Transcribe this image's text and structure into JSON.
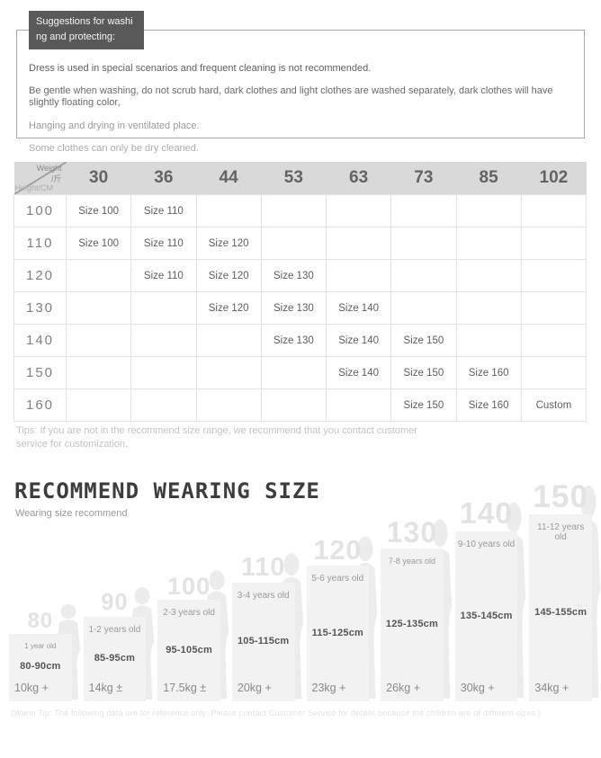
{
  "wash_box": {
    "title": "Suggestions for washing and protecting:",
    "lines": [
      "Dress is used in special scenarios and frequent cleaning is not recommended.",
      "Be gentle when washing, do not scrub hard, dark clothes and light clothes are washed separately, dark clothes will have slightly floating color,",
      "Hanging and drying in ventilated place.",
      "Some clothes can only be dry cleaned."
    ],
    "title_bg_color": "#595959"
  },
  "size_table": {
    "corner": {
      "top_label": "Weight",
      "top_unit": "/斤",
      "bottom_label": "Height/CM"
    },
    "weights": [
      "30",
      "36",
      "44",
      "53",
      "63",
      "73",
      "85",
      "102"
    ],
    "rows": [
      {
        "height": "100",
        "cells": [
          "Size 100",
          "Size 110",
          "",
          "",
          "",
          "",
          "",
          ""
        ]
      },
      {
        "height": "110",
        "cells": [
          "Size 100",
          "Size 110",
          "Size 120",
          "",
          "",
          "",
          "",
          ""
        ]
      },
      {
        "height": "120",
        "cells": [
          "",
          "Size 110",
          "Size 120",
          "Size 130",
          "",
          "",
          "",
          ""
        ]
      },
      {
        "height": "130",
        "cells": [
          "",
          "",
          "Size 120",
          "Size 130",
          "Size 140",
          "",
          "",
          ""
        ]
      },
      {
        "height": "140",
        "cells": [
          "",
          "",
          "",
          "Size 130",
          "Size 140",
          "Size 150",
          "",
          ""
        ]
      },
      {
        "height": "150",
        "cells": [
          "",
          "",
          "",
          "",
          "Size 140",
          "Size 150",
          "Size 160",
          ""
        ]
      },
      {
        "height": "160",
        "cells": [
          "",
          "",
          "",
          "",
          "",
          "Size 150",
          "Size 160",
          "Custom"
        ]
      }
    ],
    "header_bg_color": "#d9d9d9",
    "tips": "Tips: If you are not in the recommend size range, we recommend that you contact customer service for customization."
  },
  "recommend": {
    "title": "RECOMMEND WEARING SIZE",
    "subtitle": "Wearing size recommend",
    "items": [
      {
        "size": "80",
        "age": "1 year old",
        "height_range": "80-90cm",
        "weight": "10kg +"
      },
      {
        "size": "90",
        "age": "1-2 years old",
        "height_range": "85-95cm",
        "weight": "14kg ±"
      },
      {
        "size": "100",
        "age": "2-3 years old",
        "height_range": "95-105cm",
        "weight": "17.5kg ±"
      },
      {
        "size": "110",
        "age": "3-4 years old",
        "height_range": "105-115cm",
        "weight": "20kg +"
      },
      {
        "size": "120",
        "age": "5-6 years old",
        "height_range": "115-125cm",
        "weight": "23kg +"
      },
      {
        "size": "130",
        "age": "7-8 years old",
        "height_range": "125-135cm",
        "weight": "26kg +"
      },
      {
        "size": "140",
        "age": "9-10 years old",
        "height_range": "135-145cm",
        "weight": "30kg +"
      },
      {
        "size": "150",
        "age": "11-12 years old",
        "height_range": "145-155cm",
        "weight": "34kg +"
      }
    ],
    "card_bg_color": "#f2f2f2",
    "warm_tip": "(Warm Tip: The following data are for reference only. Please contact Customer Service for details because the children are of different sizes.)"
  }
}
